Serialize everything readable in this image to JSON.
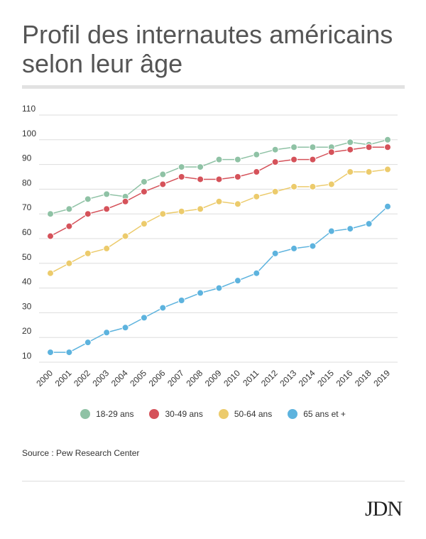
{
  "title": "Profil des internautes américains selon leur âge",
  "source": "Source : Pew Research Center",
  "logo": "JDN",
  "colors": {
    "s1829": "#8fc2a5",
    "s3049": "#d5525a",
    "s5064": "#eccb6c",
    "s65": "#5db3de",
    "grid": "#dddddd"
  },
  "chart_data": {
    "type": "line",
    "title": "Profil des internautes américains selon leur âge",
    "xlabel": "",
    "ylabel": "",
    "ylim": [
      10,
      110
    ],
    "yticks": [
      10,
      20,
      30,
      40,
      50,
      60,
      70,
      80,
      90,
      100,
      110
    ],
    "grid": true,
    "legend": "bottom",
    "x": [
      "2000",
      "2001",
      "2002",
      "2003",
      "2004",
      "2005",
      "2006",
      "2007",
      "2008",
      "2009",
      "2010",
      "2011",
      "2012",
      "2013",
      "2014",
      "2015",
      "2016",
      "2018",
      "2019"
    ],
    "series": [
      {
        "name": "18-29 ans",
        "color": "#8fc2a5",
        "values": [
          70,
          72,
          76,
          78,
          77,
          83,
          86,
          89,
          89,
          92,
          92,
          94,
          96,
          97,
          97,
          97,
          99,
          98,
          100
        ]
      },
      {
        "name": "30-49 ans",
        "color": "#d5525a",
        "values": [
          61,
          65,
          70,
          72,
          75,
          79,
          82,
          85,
          84,
          84,
          85,
          87,
          91,
          92,
          92,
          95,
          96,
          97,
          97
        ]
      },
      {
        "name": "50-64 ans",
        "color": "#eccb6c",
        "values": [
          46,
          50,
          54,
          56,
          61,
          66,
          70,
          71,
          72,
          75,
          74,
          77,
          79,
          81,
          81,
          82,
          87,
          87,
          88
        ]
      },
      {
        "name": "65 ans et +",
        "color": "#5db3de",
        "values": [
          14,
          14,
          18,
          22,
          24,
          28,
          32,
          35,
          38,
          40,
          43,
          46,
          54,
          56,
          57,
          63,
          64,
          66,
          73
        ]
      }
    ]
  }
}
